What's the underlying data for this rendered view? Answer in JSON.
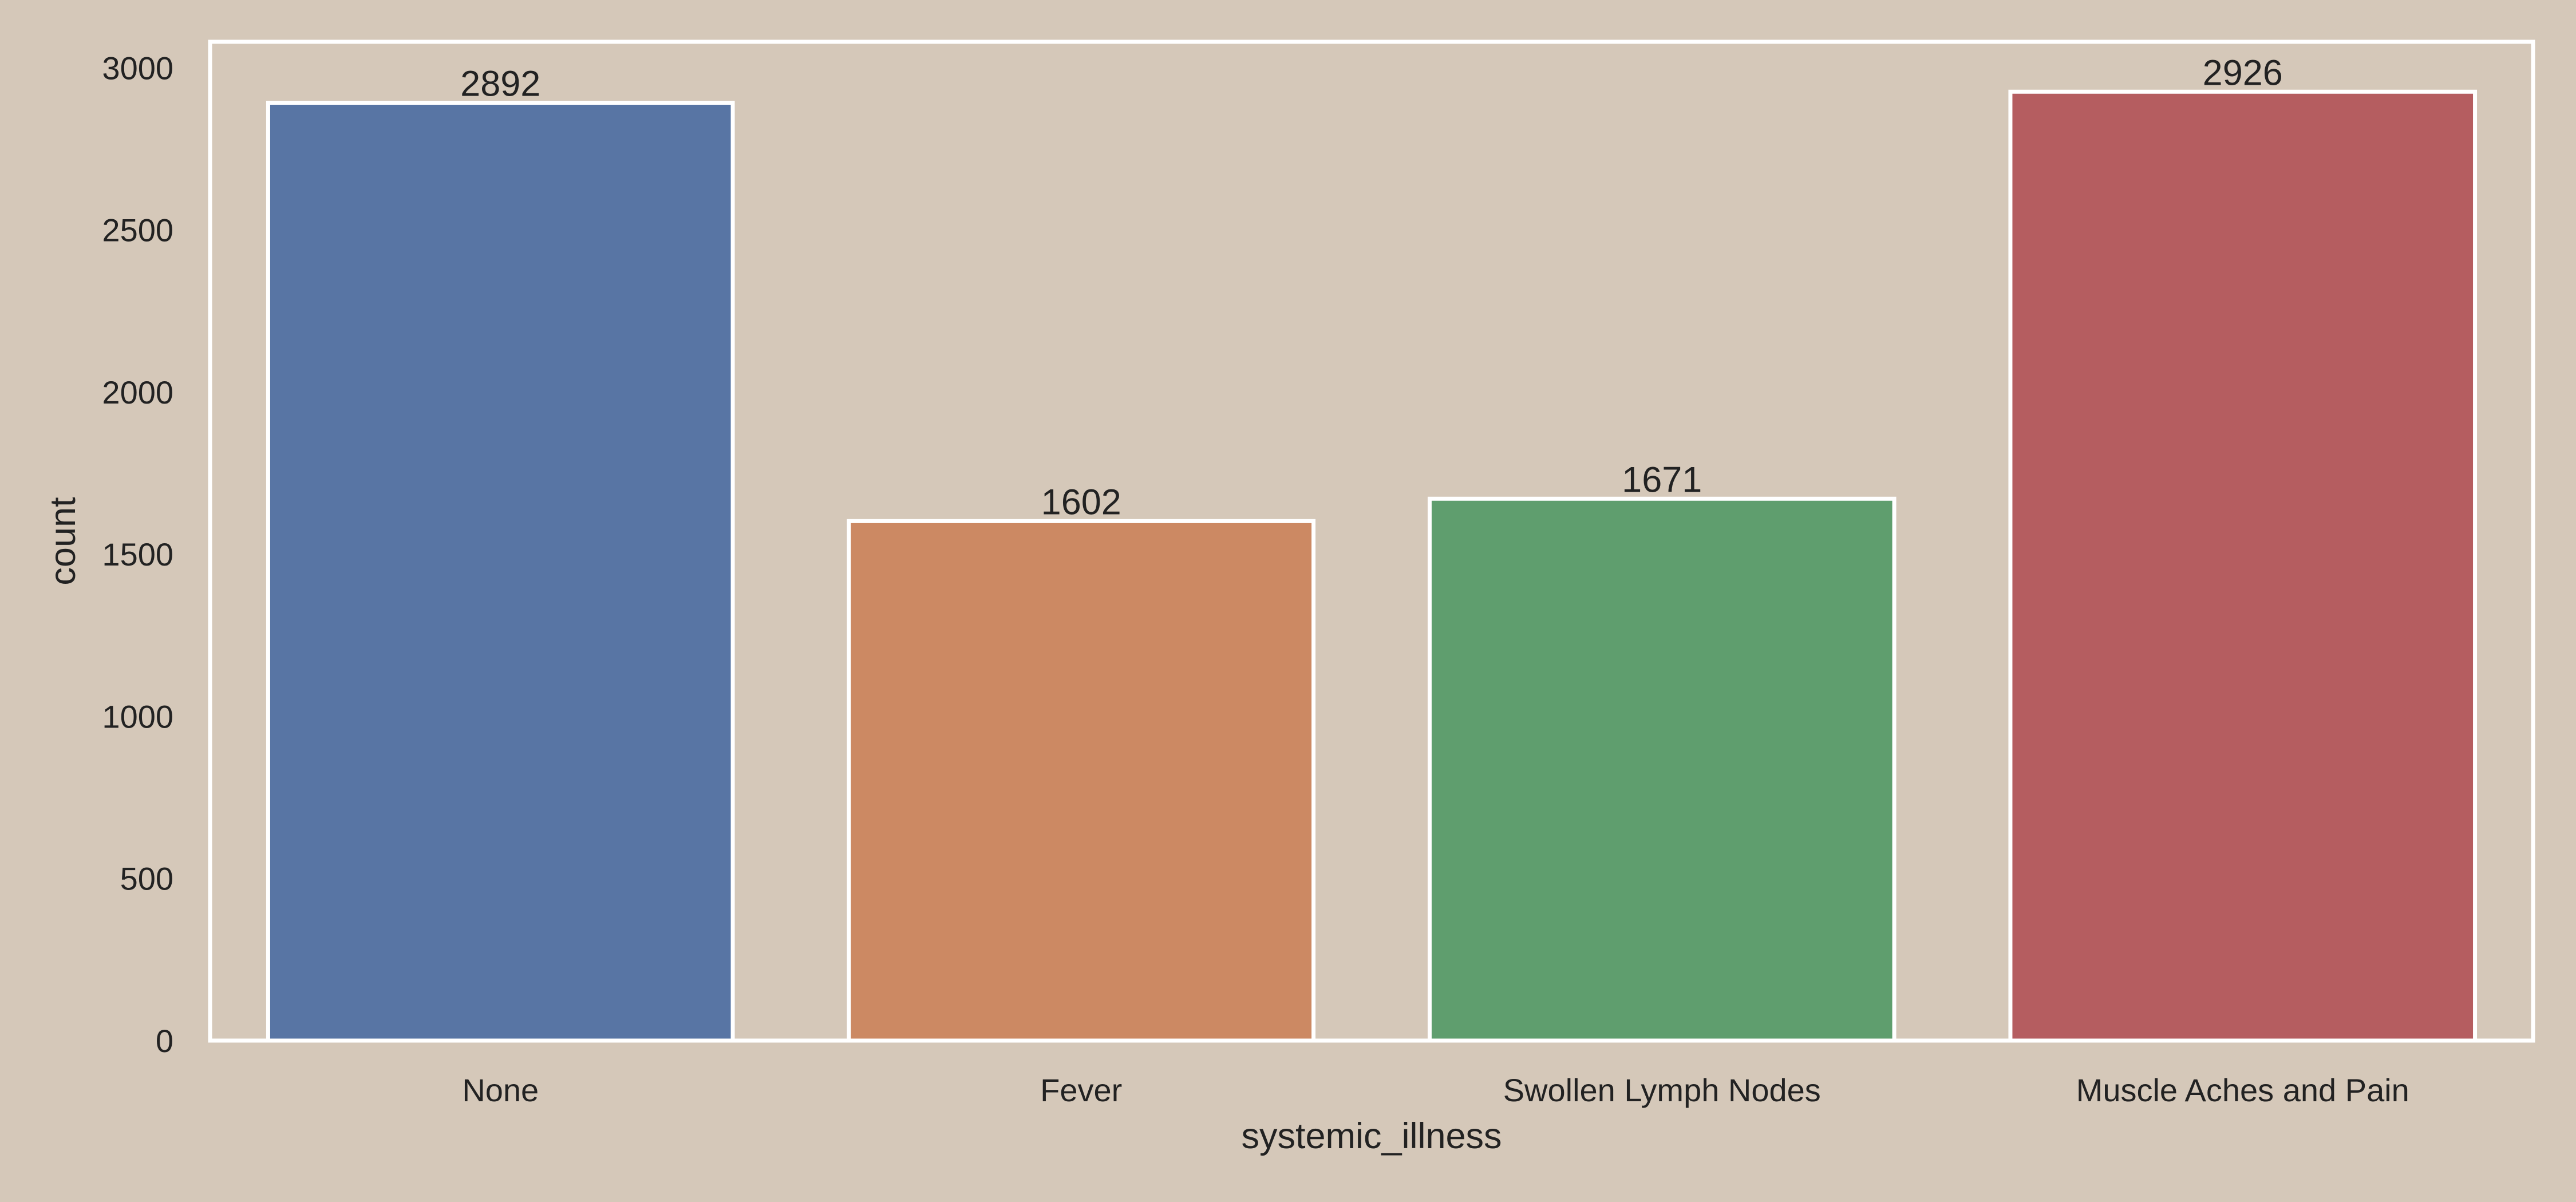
{
  "chart_data": {
    "type": "bar",
    "categories": [
      "None",
      "Fever",
      "Swollen Lymph Nodes",
      "Muscle Aches and Pain"
    ],
    "values": [
      2892,
      1602,
      1671,
      2926
    ],
    "data_labels": [
      "2892",
      "1602",
      "1671",
      "2926"
    ],
    "colors": [
      "#5875a4",
      "#cc8963",
      "#5f9e6e",
      "#b55d60"
    ],
    "title": "",
    "xlabel": "systemic_illness",
    "ylabel": "count",
    "ylim": [
      0,
      3080
    ],
    "yticks": [
      0,
      500,
      1000,
      1500,
      2000,
      2500,
      3000
    ],
    "ytick_labels": [
      "0",
      "500",
      "1000",
      "1500",
      "2000",
      "2500",
      "3000"
    ],
    "grid": false,
    "legend": "none",
    "background_color": "#d5c8b9",
    "frame_color": "#ffffff"
  }
}
